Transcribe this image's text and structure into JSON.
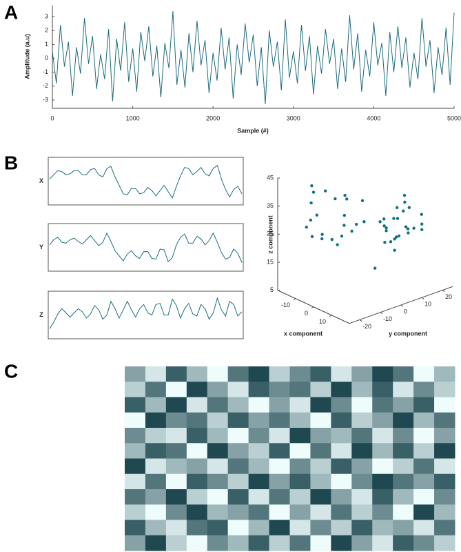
{
  "chart_data": [
    {
      "type": "line",
      "panel": "A",
      "color": "#1b6b7b",
      "xlabel": "Sample (#)",
      "ylabel": "Amplitude (a.u)",
      "xlim": [
        0,
        5000
      ],
      "ylim": [
        -3.6,
        3.8
      ],
      "xticks": [
        0,
        1000,
        2000,
        3000,
        4000,
        5000
      ],
      "yticks": [
        -3,
        -2,
        -1,
        0,
        1,
        2,
        3
      ],
      "x": [
        0,
        50,
        100,
        150,
        200,
        250,
        300,
        350,
        400,
        450,
        500,
        550,
        600,
        650,
        700,
        750,
        800,
        850,
        900,
        950,
        1000,
        1050,
        1100,
        1150,
        1200,
        1250,
        1300,
        1350,
        1400,
        1450,
        1500,
        1550,
        1600,
        1650,
        1700,
        1750,
        1800,
        1850,
        1900,
        1950,
        2000,
        2050,
        2100,
        2150,
        2200,
        2250,
        2300,
        2350,
        2400,
        2450,
        2500,
        2550,
        2600,
        2650,
        2700,
        2750,
        2800,
        2850,
        2900,
        2950,
        3000,
        3050,
        3100,
        3150,
        3200,
        3250,
        3300,
        3350,
        3400,
        3450,
        3500,
        3550,
        3600,
        3650,
        3700,
        3750,
        3800,
        3850,
        3900,
        3950,
        4000,
        4050,
        4100,
        4150,
        4200,
        4250,
        4300,
        4350,
        4400,
        4450,
        4500,
        4550,
        4600,
        4650,
        4700,
        4750,
        4800,
        4850,
        4900,
        4950,
        5000
      ],
      "values": [
        0.5,
        -1.8,
        2.4,
        -0.6,
        1.2,
        -2.7,
        0.8,
        -1.1,
        2.9,
        -0.4,
        1.6,
        -2.2,
        0.3,
        -1.5,
        2.1,
        -3.1,
        1.4,
        -0.9,
        2.6,
        -1.7,
        0.7,
        -2.4,
        1.9,
        -0.2,
        2.3,
        -1.3,
        0.9,
        -2.8,
        1.1,
        -0.7,
        3.4,
        -1.9,
        0.6,
        -2.1,
        1.8,
        -1.0,
        2.7,
        -0.5,
        1.3,
        -2.5,
        0.4,
        -1.6,
        2.2,
        -0.8,
        1.5,
        -2.9,
        1.0,
        -1.2,
        2.5,
        -0.3,
        1.7,
        -2.0,
        0.8,
        -3.3,
        2.0,
        -0.6,
        1.2,
        -2.3,
        2.8,
        -1.4,
        0.5,
        -1.8,
        2.4,
        -0.9,
        1.6,
        -2.6,
        0.9,
        -1.1,
        2.1,
        -0.4,
        1.4,
        -2.2,
        0.7,
        -1.7,
        3.1,
        -0.8,
        1.8,
        -2.4,
        0.6,
        -1.3,
        2.6,
        -0.5,
        1.1,
        -2.7,
        1.9,
        -1.0,
        2.3,
        -0.7,
        1.5,
        -2.1,
        0.4,
        -1.5,
        2.9,
        -0.6,
        1.3,
        -2.5,
        0.8,
        -1.2,
        2.2,
        -1.9,
        3.3
      ]
    },
    {
      "type": "lorenz",
      "panel": "B",
      "xlabel": "x component",
      "ylabel": "y component",
      "zlabel": "z component",
      "xlim": [
        -20,
        20
      ],
      "ylim": [
        -25,
        25
      ],
      "zlim": [
        5,
        45
      ],
      "xticks": [
        -10,
        0,
        10
      ],
      "yticks": [
        -20,
        -10,
        0,
        10,
        20
      ],
      "zticks": [
        5,
        15,
        25,
        35,
        45
      ],
      "series": [
        {
          "name": "X",
          "color": "#1b6b7b",
          "values": [
            2,
            6,
            10,
            9,
            6,
            7,
            10,
            10,
            6,
            6,
            11,
            12,
            6,
            4,
            12,
            14,
            4,
            -4,
            -12,
            -13,
            -7,
            -7,
            -12,
            -11,
            -6,
            -9,
            -14,
            -9,
            -4,
            -10,
            -16,
            -5,
            5,
            13,
            12,
            6,
            9,
            13,
            7,
            5,
            12,
            15,
            2,
            -8,
            -15,
            -8,
            -5,
            -12
          ]
        },
        {
          "name": "Y",
          "color": "#1b6b7b",
          "values": [
            3,
            9,
            12,
            6,
            5,
            9,
            11,
            7,
            4,
            9,
            14,
            8,
            2,
            6,
            17,
            7,
            -4,
            -10,
            -16,
            -8,
            -4,
            -10,
            -13,
            -5,
            -5,
            -13,
            -14,
            -2,
            -3,
            -17,
            -12,
            3,
            12,
            16,
            5,
            5,
            13,
            10,
            3,
            8,
            17,
            6,
            -6,
            -14,
            -12,
            -2,
            -7,
            -18
          ]
        },
        {
          "name": "Z",
          "color": "#1b6b7b",
          "values": [
            12,
            18,
            26,
            31,
            27,
            23,
            27,
            31,
            28,
            22,
            26,
            34,
            30,
            21,
            25,
            38,
            31,
            22,
            30,
            38,
            30,
            23,
            31,
            35,
            27,
            25,
            35,
            36,
            25,
            25,
            40,
            34,
            22,
            31,
            36,
            26,
            24,
            35,
            31,
            21,
            27,
            41,
            30,
            24,
            38,
            35,
            24,
            28
          ]
        }
      ]
    },
    {
      "type": "heatmap",
      "panel": "C",
      "colors": [
        "#05323c",
        "#eefcfc"
      ],
      "vlim": [
        0,
        9
      ],
      "values": [
        [
          5,
          8,
          2,
          6,
          9,
          3,
          1,
          7,
          4,
          2,
          8,
          5,
          1,
          3,
          9,
          6
        ],
        [
          7,
          3,
          9,
          1,
          5,
          8,
          2,
          4,
          3,
          7,
          1,
          6,
          2,
          8,
          4,
          7
        ],
        [
          2,
          6,
          1,
          8,
          3,
          6,
          9,
          5,
          8,
          1,
          4,
          9,
          3,
          5,
          2,
          9
        ],
        [
          9,
          1,
          4,
          3,
          7,
          2,
          5,
          3,
          6,
          9,
          2,
          7,
          5,
          1,
          6,
          3
        ],
        [
          4,
          7,
          8,
          2,
          6,
          9,
          4,
          8,
          1,
          5,
          6,
          3,
          8,
          4,
          9,
          5
        ],
        [
          6,
          2,
          3,
          9,
          1,
          5,
          7,
          2,
          9,
          3,
          8,
          1,
          6,
          2,
          7,
          1
        ],
        [
          1,
          8,
          6,
          5,
          8,
          3,
          6,
          9,
          4,
          7,
          2,
          5,
          9,
          7,
          3,
          8
        ],
        [
          8,
          3,
          9,
          2,
          4,
          7,
          1,
          5,
          2,
          6,
          9,
          4,
          1,
          3,
          5,
          2
        ],
        [
          3,
          5,
          1,
          7,
          9,
          2,
          8,
          3,
          7,
          1,
          5,
          8,
          2,
          6,
          9,
          4
        ],
        [
          7,
          9,
          4,
          1,
          6,
          5,
          3,
          9,
          5,
          8,
          3,
          7,
          4,
          9,
          1,
          6
        ],
        [
          2,
          6,
          8,
          3,
          2,
          9,
          6,
          1,
          8,
          4,
          7,
          2,
          6,
          5,
          8,
          3
        ],
        [
          5,
          1,
          7,
          9,
          4,
          6,
          2,
          7,
          3,
          9,
          1,
          5,
          8,
          2,
          4,
          7
        ]
      ]
    }
  ]
}
